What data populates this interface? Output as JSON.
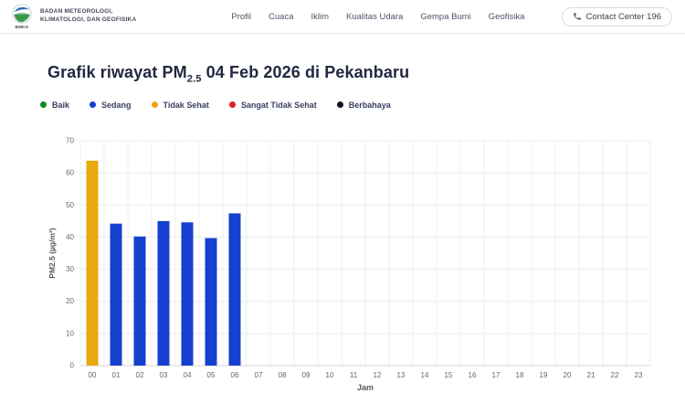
{
  "header": {
    "logo": {
      "brand": "BMKG",
      "org_line1": "BADAN METEOROLOGI,",
      "org_line2": "KLIMATOLOGI, DAN GEOFISIKA"
    },
    "nav": [
      "Profil",
      "Cuaca",
      "Iklim",
      "Kualitas Udara",
      "Gempa Bumi",
      "Geofisika"
    ],
    "contact_button": {
      "label": "Contact Center 196",
      "icon": "phone-icon"
    }
  },
  "page": {
    "title": {
      "prefix": "Grafik riwayat PM",
      "subscript": "2.5",
      "suffix": " 04 Feb 2026 di Pekanbaru"
    }
  },
  "legend": [
    {
      "label": "Baik",
      "color": "#0d8c1e"
    },
    {
      "label": "Sedang",
      "color": "#1640ce"
    },
    {
      "label": "Tidak Sehat",
      "color": "#e8a80e"
    },
    {
      "label": "Sangat Tidak Sehat",
      "color": "#e11e23"
    },
    {
      "label": "Berbahaya",
      "color": "#13151c"
    }
  ],
  "chart_data": {
    "type": "bar",
    "title": "Grafik riwayat PM2.5 04 Feb 2026 di Pekanbaru",
    "xlabel": "Jam",
    "ylabel": "PM2.5 (µg/m³)",
    "categories": [
      "00",
      "01",
      "02",
      "03",
      "04",
      "05",
      "06",
      "07",
      "08",
      "09",
      "10",
      "11",
      "12",
      "13",
      "14",
      "15",
      "16",
      "17",
      "18",
      "19",
      "20",
      "21",
      "22",
      "23"
    ],
    "values": [
      63.8,
      44.2,
      40.2,
      45.0,
      44.6,
      39.7,
      47.4,
      null,
      null,
      null,
      null,
      null,
      null,
      null,
      null,
      null,
      null,
      null,
      null,
      null,
      null,
      null,
      null,
      null
    ],
    "statuses": [
      "Tidak Sehat",
      "Sedang",
      "Sedang",
      "Sedang",
      "Sedang",
      "Sedang",
      "Sedang",
      null,
      null,
      null,
      null,
      null,
      null,
      null,
      null,
      null,
      null,
      null,
      null,
      null,
      null,
      null,
      null,
      null
    ],
    "bar_colors": [
      "#e8a80e",
      "#1640ce",
      "#1640ce",
      "#1640ce",
      "#1640ce",
      "#1640ce",
      "#1640ce",
      null,
      null,
      null,
      null,
      null,
      null,
      null,
      null,
      null,
      null,
      null,
      null,
      null,
      null,
      null,
      null,
      null
    ],
    "ylim": [
      0,
      70
    ],
    "yticks": [
      0,
      10,
      20,
      30,
      40,
      50,
      60,
      70
    ],
    "grid": "both",
    "legend_position": "top-left"
  }
}
